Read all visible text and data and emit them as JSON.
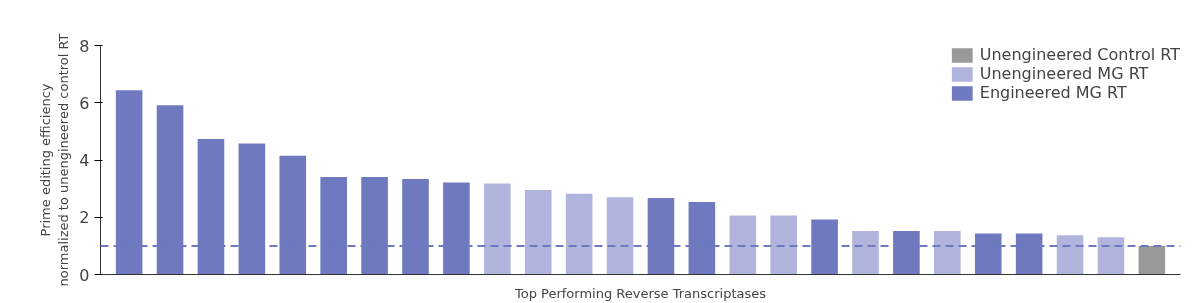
{
  "chart_data": {
    "type": "bar",
    "xlabel": "Top Performing Reverse Transcriptases",
    "ylabel": "Prime editing efficiency\nnormalized to unengineered control RT",
    "categories": [
      null,
      null,
      null,
      null,
      null,
      null,
      null,
      null,
      null,
      null,
      null,
      null,
      null,
      null,
      null,
      null,
      null,
      null,
      null,
      null,
      null,
      null,
      null,
      null,
      null,
      null
    ],
    "series": [
      {
        "name": "Unengineered Control RT",
        "color": "#999999",
        "values": [
          null,
          null,
          null,
          null,
          null,
          null,
          null,
          null,
          null,
          null,
          null,
          null,
          null,
          null,
          null,
          null,
          null,
          null,
          null,
          null,
          null,
          null,
          null,
          null,
          null,
          1.0
        ]
      },
      {
        "name": "Unengineered MG RT",
        "color": "#b1b5de",
        "values": [
          null,
          null,
          null,
          null,
          null,
          null,
          null,
          null,
          null,
          3.18,
          2.95,
          2.82,
          2.7,
          null,
          null,
          2.06,
          2.06,
          null,
          1.52,
          null,
          1.52,
          null,
          null,
          1.37,
          1.3,
          null
        ]
      },
      {
        "name": "Engineered MG RT",
        "color": "#6e79bf",
        "values": [
          6.44,
          5.91,
          4.73,
          4.58,
          4.15,
          3.41,
          3.41,
          3.34,
          3.21,
          null,
          null,
          null,
          null,
          2.67,
          2.53,
          null,
          null,
          1.92,
          null,
          1.52,
          null,
          1.43,
          1.43,
          null,
          null,
          null
        ]
      }
    ],
    "ylim": [
      0,
      8
    ],
    "yticks": [
      0,
      2,
      4,
      6,
      8
    ],
    "ref_lines": [
      {
        "axis": "y",
        "value": 1,
        "label": null,
        "color": "#6e79bf",
        "line_style": "dashed"
      }
    ],
    "grid": false,
    "legend": "top right"
  }
}
